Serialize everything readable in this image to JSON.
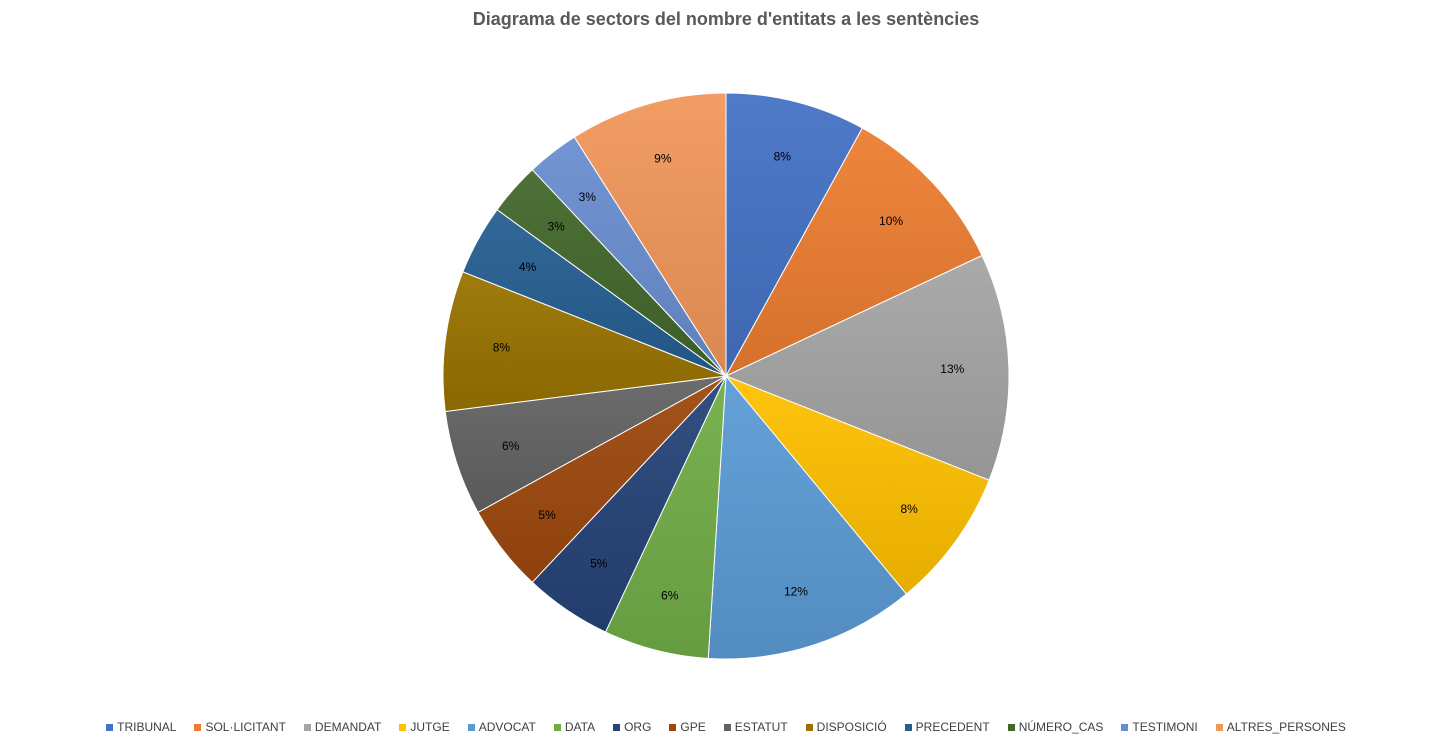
{
  "chart_data": {
    "type": "pie",
    "title": "Diagrama de sectors del nombre d'entitats a les sentències",
    "legend_position": "bottom",
    "slices": [
      {
        "label": "TRIBUNAL",
        "value": 8,
        "display": "8%",
        "color": "#4472c4"
      },
      {
        "label": "SOL·LICITANT",
        "value": 10,
        "display": "10%",
        "color": "#ed7d31"
      },
      {
        "label": "DEMANDAT",
        "value": 13,
        "display": "13%",
        "color": "#a5a5a5"
      },
      {
        "label": "JUTGE",
        "value": 8,
        "display": "8%",
        "color": "#ffc000"
      },
      {
        "label": "ADVOCAT",
        "value": 12,
        "display": "12%",
        "color": "#5b9bd5"
      },
      {
        "label": "DATA",
        "value": 6,
        "display": "6%",
        "color": "#70ad47"
      },
      {
        "label": "ORG",
        "value": 5,
        "display": "5%",
        "color": "#264478"
      },
      {
        "label": "GPE",
        "value": 5,
        "display": "5%",
        "color": "#9e480e"
      },
      {
        "label": "ESTATUT",
        "value": 6,
        "display": "6%",
        "color": "#636363"
      },
      {
        "label": "DISPOSICIÓ",
        "value": 8,
        "display": "8%",
        "color": "#997300"
      },
      {
        "label": "PRECEDENT",
        "value": 4,
        "display": "4%",
        "color": "#255e91"
      },
      {
        "label": "NÚMERO_CAS",
        "value": 3,
        "display": "3%",
        "color": "#43682b"
      },
      {
        "label": "TESTIMONI",
        "value": 3,
        "display": "3%",
        "color": "#698ed0"
      },
      {
        "label": "ALTRES_PERSONES",
        "value": 9,
        "display": "9%",
        "color": "#f1975a"
      }
    ]
  }
}
